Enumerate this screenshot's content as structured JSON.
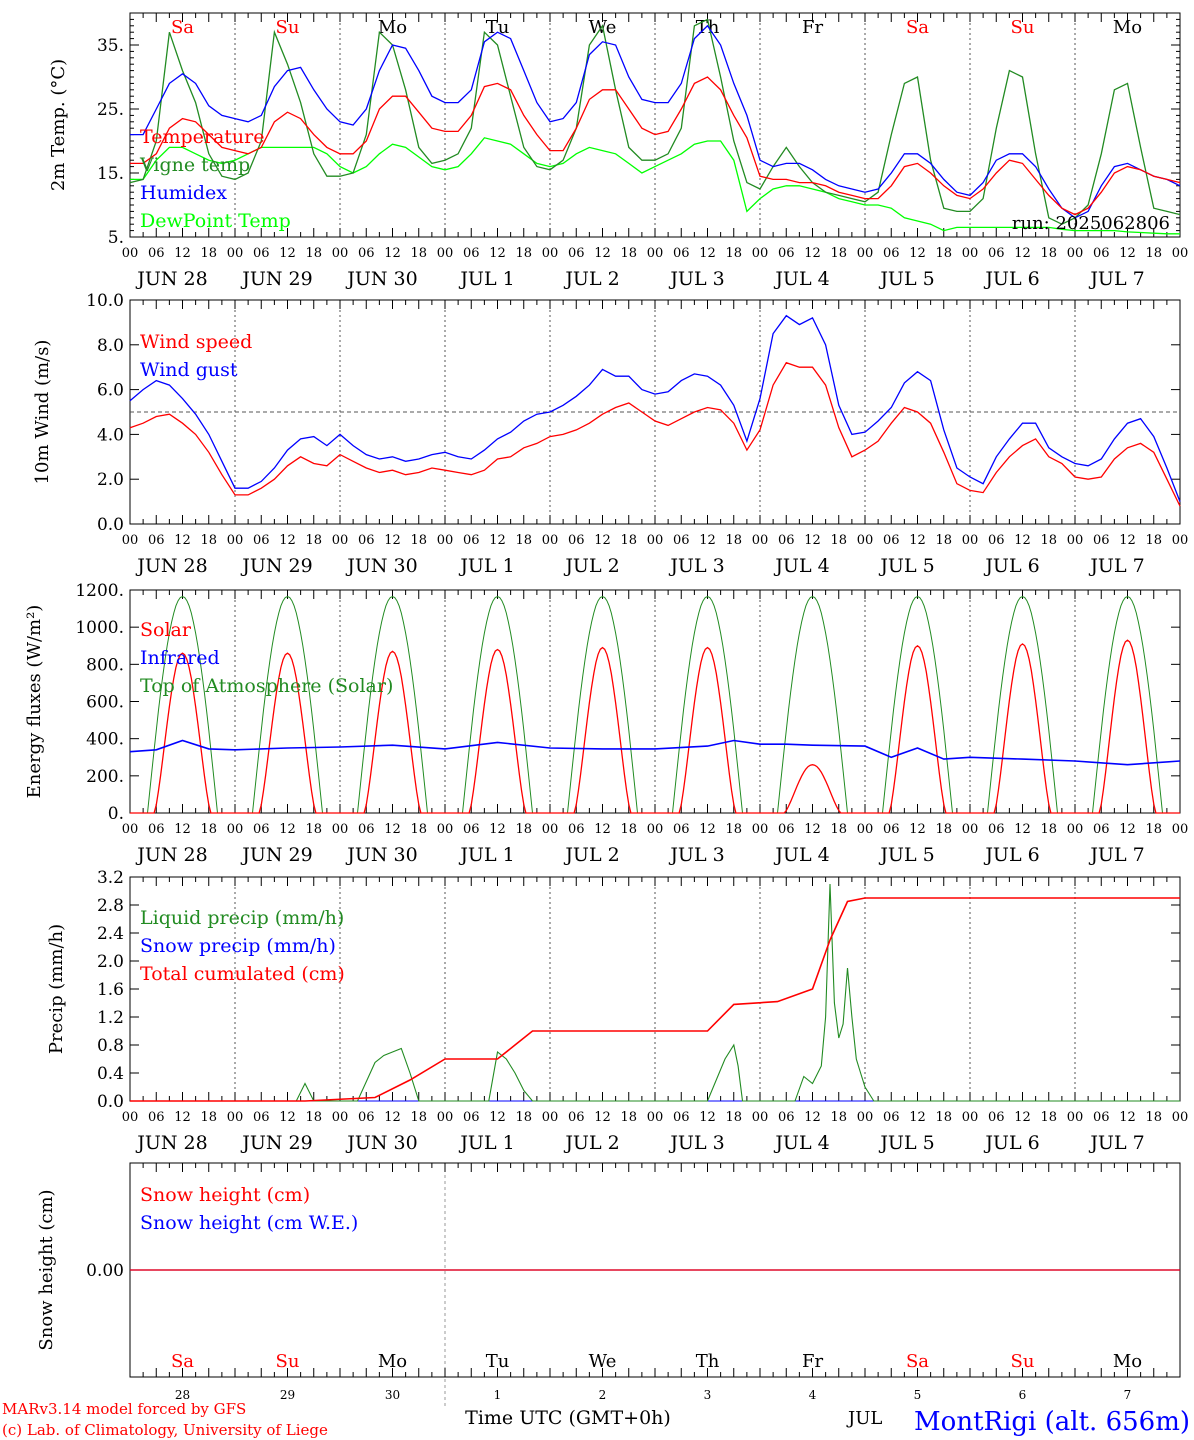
{
  "colors": {
    "red": "#ff0000",
    "green": "#228b22",
    "blue": "#0000ff",
    "light_green": "#00ff00",
    "axis": "#000000",
    "grid": "#555555"
  },
  "days": {
    "weekdays": [
      "Sa",
      "Su",
      "Mo",
      "Tu",
      "We",
      "Th",
      "Fr",
      "Sa",
      "Su",
      "Mo"
    ],
    "weekend": [
      true,
      true,
      false,
      false,
      false,
      false,
      false,
      true,
      true,
      false
    ],
    "dates": [
      "JUN 28",
      "JUN 29",
      "JUN 30",
      "JUL  1",
      "JUL  2",
      "JUL  3",
      "JUL  4",
      "JUL  5",
      "JUL  6",
      "JUL  7"
    ],
    "day_numbers": [
      "28",
      "29",
      "30",
      "1",
      "2",
      "3",
      "4",
      "5",
      "6",
      "7"
    ],
    "hour_ticks": [
      "00",
      "06",
      "12",
      "18"
    ],
    "final_tick": "00"
  },
  "footer": {
    "model": "MARv3.14 model forced by GFS",
    "credit": "(c) Lab. of Climatology, University of Liege",
    "time_axis": "Time UTC (GMT+0h)",
    "month": "JUL",
    "station": "MontRigi (alt. 656m)"
  },
  "chart_data": [
    {
      "type": "line",
      "panel": "temperature",
      "ylabel": "2m Temp. (°C)",
      "ylim": [
        5,
        40
      ],
      "yticks": [
        5,
        15,
        25,
        35
      ],
      "ytick_labels": [
        "5.",
        "15.",
        "25.",
        "35."
      ],
      "run_label": "run: 2025062806",
      "legend_placement": "top-left",
      "x_hours": [
        0,
        3,
        6,
        9,
        12,
        15,
        18,
        21,
        24,
        27,
        30,
        33,
        36,
        39,
        42,
        45,
        48,
        51,
        54,
        57,
        60,
        63,
        66,
        69,
        72,
        75,
        78,
        81,
        84,
        87,
        90,
        93,
        96,
        99,
        102,
        105,
        108,
        111,
        114,
        117,
        120,
        123,
        126,
        129,
        132,
        135,
        138,
        141,
        144,
        147,
        150,
        153,
        156,
        159,
        162,
        165,
        168,
        171,
        174,
        177,
        180,
        183,
        186,
        189,
        192,
        195,
        198,
        201,
        204,
        207,
        210,
        213,
        216,
        219,
        222,
        225,
        228,
        231,
        234,
        237,
        240
      ],
      "series": [
        {
          "name": "Temperature",
          "color": "red",
          "values": [
            16.5,
            16.5,
            18,
            22,
            23.5,
            23,
            21,
            19,
            18.5,
            18,
            19,
            23,
            24.5,
            23.5,
            21,
            19,
            18,
            18,
            20,
            25,
            27,
            27,
            24.5,
            22,
            21.5,
            21.5,
            24,
            28.5,
            29,
            28,
            24,
            21,
            18.5,
            18.5,
            22,
            26.5,
            28,
            28,
            25,
            22,
            21,
            21.5,
            25,
            29,
            30,
            28,
            24,
            20.5,
            14.5,
            14,
            14,
            13.5,
            13.5,
            13,
            12,
            11.5,
            11,
            11,
            13,
            16,
            16.5,
            15,
            13,
            11.5,
            11,
            12.5,
            15,
            17,
            16.5,
            14,
            11.5,
            9.5,
            8.5,
            9.5,
            12,
            15,
            16,
            15.5,
            14.5,
            14,
            13.5
          ]
        },
        {
          "name": "Vigne temp",
          "color": "green",
          "values": [
            13.5,
            14,
            20,
            37,
            31,
            26,
            18,
            14.5,
            14,
            15,
            20,
            37,
            32,
            26,
            18,
            14.5,
            14.5,
            15,
            21,
            37,
            35,
            28,
            19,
            16.5,
            17,
            18,
            22,
            37,
            35,
            27,
            19,
            16,
            15.5,
            17,
            22,
            35,
            38,
            28,
            19,
            17,
            17,
            18,
            22,
            38,
            39,
            30,
            20,
            13.5,
            12.5,
            16,
            19,
            16,
            13.5,
            12,
            11.5,
            11,
            10.5,
            12,
            21,
            29,
            30,
            17,
            9.5,
            9,
            9,
            11,
            22,
            31,
            30,
            18,
            8,
            7,
            8,
            10,
            18,
            28,
            29,
            19,
            9.5,
            9,
            8.5
          ]
        },
        {
          "name": "Humidex",
          "color": "blue",
          "values": [
            21,
            21,
            25,
            29,
            30.5,
            29,
            25.5,
            24,
            23.5,
            23,
            24,
            28.5,
            31,
            31.5,
            28,
            25,
            23,
            22.5,
            25,
            31,
            35,
            34.5,
            31,
            27,
            26,
            26,
            28,
            35.5,
            37,
            36,
            31,
            26,
            23,
            23.5,
            26,
            33.5,
            35.5,
            35,
            30,
            26.5,
            26,
            26,
            29,
            36,
            38,
            35,
            29,
            24,
            17,
            16,
            16.5,
            16.5,
            15.5,
            14,
            13,
            12.5,
            12,
            12.5,
            15,
            18,
            18,
            16.5,
            14,
            12,
            11.5,
            13.5,
            17,
            18,
            18,
            16,
            12.5,
            9.5,
            8,
            9,
            13,
            16,
            16.5,
            15.5,
            14.5,
            14,
            13
          ]
        },
        {
          "name": "DewPoint Temp",
          "color": "light_green",
          "values": [
            14,
            14,
            17,
            19,
            19,
            18,
            17,
            16.5,
            17,
            18,
            19,
            19,
            19,
            19,
            19,
            18,
            16,
            15,
            16,
            18,
            19.5,
            19,
            17.5,
            16,
            15.5,
            16,
            18,
            20.5,
            20,
            19.5,
            18,
            16.5,
            16,
            16.5,
            18,
            19,
            18.5,
            18,
            16.5,
            15,
            16,
            17,
            18,
            19.5,
            20,
            20,
            17,
            9,
            11,
            12.5,
            13,
            13,
            12.5,
            12,
            11,
            10.5,
            10,
            10,
            9.5,
            8,
            7.5,
            7,
            6,
            6.5,
            6.5,
            6.5,
            6.5,
            6.5,
            6.5,
            6.5,
            6.5,
            6.2,
            6,
            6,
            6,
            6,
            5.8,
            5.7,
            5.6,
            5.5,
            5.5
          ]
        }
      ]
    },
    {
      "type": "line",
      "panel": "wind",
      "ylabel": "10m Wind (m/s)",
      "ylim": [
        0,
        10
      ],
      "yticks": [
        0,
        2,
        4,
        6,
        8,
        10
      ],
      "ytick_labels": [
        "0.0",
        "2.0",
        "4.0",
        "6.0",
        "8.0",
        "10.0"
      ],
      "reference_line": 5,
      "legend_placement": "top-left",
      "x_hours": [
        0,
        3,
        6,
        9,
        12,
        15,
        18,
        21,
        24,
        27,
        30,
        33,
        36,
        39,
        42,
        45,
        48,
        51,
        54,
        57,
        60,
        63,
        66,
        69,
        72,
        75,
        78,
        81,
        84,
        87,
        90,
        93,
        96,
        99,
        102,
        105,
        108,
        111,
        114,
        117,
        120,
        123,
        126,
        129,
        132,
        135,
        138,
        141,
        144,
        147,
        150,
        153,
        156,
        159,
        162,
        165,
        168,
        171,
        174,
        177,
        180,
        183,
        186,
        189,
        192,
        195,
        198,
        201,
        204,
        207,
        210,
        213,
        216,
        219,
        222,
        225,
        228,
        231,
        234,
        237,
        240
      ],
      "series": [
        {
          "name": "Wind speed",
          "color": "red",
          "values": [
            4.3,
            4.5,
            4.8,
            4.9,
            4.5,
            4.0,
            3.2,
            2.2,
            1.3,
            1.3,
            1.6,
            2.0,
            2.6,
            3.0,
            2.7,
            2.6,
            3.1,
            2.8,
            2.5,
            2.3,
            2.4,
            2.2,
            2.3,
            2.5,
            2.4,
            2.3,
            2.2,
            2.4,
            2.9,
            3.0,
            3.4,
            3.6,
            3.9,
            4.0,
            4.2,
            4.5,
            4.9,
            5.2,
            5.4,
            5.0,
            4.6,
            4.4,
            4.7,
            5.0,
            5.2,
            5.1,
            4.5,
            3.3,
            4.2,
            6.2,
            7.2,
            7.0,
            7.0,
            6.2,
            4.3,
            3.0,
            3.3,
            3.7,
            4.5,
            5.2,
            5.0,
            4.5,
            3.2,
            1.8,
            1.5,
            1.4,
            2.3,
            3.0,
            3.5,
            3.8,
            3.0,
            2.7,
            2.1,
            2.0,
            2.1,
            2.9,
            3.4,
            3.6,
            3.2,
            2.0,
            0.8
          ]
        },
        {
          "name": "Wind gust",
          "color": "blue",
          "values": [
            5.5,
            6.0,
            6.4,
            6.2,
            5.6,
            4.9,
            4.0,
            2.8,
            1.6,
            1.6,
            1.9,
            2.5,
            3.3,
            3.8,
            3.9,
            3.5,
            4.0,
            3.5,
            3.1,
            2.9,
            3.0,
            2.8,
            2.9,
            3.1,
            3.2,
            3.0,
            2.9,
            3.3,
            3.8,
            4.1,
            4.6,
            4.9,
            5.0,
            5.3,
            5.7,
            6.2,
            6.9,
            6.6,
            6.6,
            6.0,
            5.8,
            5.9,
            6.4,
            6.7,
            6.6,
            6.2,
            5.3,
            3.7,
            5.6,
            8.5,
            9.3,
            8.9,
            9.2,
            8.0,
            5.3,
            4.0,
            4.1,
            4.6,
            5.2,
            6.3,
            6.8,
            6.4,
            4.2,
            2.5,
            2.1,
            1.8,
            3.0,
            3.8,
            4.5,
            4.5,
            3.4,
            3.0,
            2.7,
            2.6,
            2.9,
            3.8,
            4.5,
            4.7,
            3.9,
            2.5,
            1.0
          ]
        }
      ]
    },
    {
      "type": "line",
      "panel": "energy",
      "ylabel": "Energy fluxes (W/m²)",
      "ylim": [
        0,
        1200
      ],
      "yticks": [
        0,
        200,
        400,
        600,
        800,
        1000,
        1200
      ],
      "ytick_labels": [
        "0.",
        "200.",
        "400.",
        "600.",
        "800.",
        "1000.",
        "1200."
      ],
      "legend_placement": "top-left",
      "daily_solar_peaks": [
        860,
        860,
        870,
        880,
        890,
        890,
        260,
        900,
        910,
        930
      ],
      "toa_peak": 1165,
      "sunrise_hour": 4,
      "sunset_hour": 20,
      "infrared": {
        "x_hours": [
          0,
          6,
          12,
          18,
          24,
          36,
          48,
          60,
          72,
          84,
          96,
          108,
          120,
          132,
          138,
          144,
          150,
          156,
          168,
          174,
          180,
          186,
          192,
          204,
          216,
          228,
          240
        ],
        "values": [
          330,
          340,
          390,
          345,
          340,
          350,
          355,
          365,
          345,
          380,
          350,
          345,
          345,
          360,
          390,
          370,
          370,
          365,
          360,
          300,
          350,
          290,
          300,
          290,
          280,
          260,
          280
        ]
      },
      "series": [
        {
          "name": "Solar",
          "color": "red"
        },
        {
          "name": "Infrared",
          "color": "blue"
        },
        {
          "name": "Top of Atmosphere (Solar)",
          "color": "green"
        }
      ]
    },
    {
      "type": "line",
      "panel": "precip",
      "ylabel": "Precip (mm/h)",
      "ylim": [
        0,
        3.2
      ],
      "yticks": [
        0,
        0.4,
        0.8,
        1.2,
        1.6,
        2.0,
        2.4,
        2.8,
        3.2
      ],
      "ytick_labels": [
        "0.0",
        "0.4",
        "0.8",
        "1.2",
        "1.6",
        "2.0",
        "2.4",
        "2.8",
        "3.2"
      ],
      "legend_placement": "top-left",
      "series": [
        {
          "name": "Liquid precip (mm/h)",
          "color": "green",
          "x_hours": [
            0,
            38,
            40,
            42,
            44,
            52,
            56,
            58,
            60,
            62,
            64,
            66,
            70,
            82,
            84,
            86,
            88,
            90,
            92,
            108,
            132,
            136,
            138,
            139,
            140,
            144,
            152,
            154,
            156,
            158,
            159,
            160,
            161,
            162,
            163,
            164,
            165,
            166,
            167,
            168,
            169,
            170,
            174,
            240
          ],
          "values": [
            0,
            0,
            0.25,
            0,
            0,
            0,
            0.55,
            0.65,
            0.7,
            0.75,
            0.4,
            0,
            0,
            0,
            0.7,
            0.6,
            0.4,
            0.15,
            0,
            0,
            0,
            0.6,
            0.8,
            0.5,
            0,
            0,
            0,
            0.35,
            0.25,
            0.5,
            1.2,
            3.1,
            1.4,
            0.9,
            1.1,
            1.9,
            1.2,
            0.6,
            0.4,
            0.2,
            0.1,
            0,
            0,
            0
          ]
        },
        {
          "name": "Snow precip (mm/h)",
          "color": "blue",
          "x_hours": [
            0,
            240
          ],
          "values": [
            0,
            0
          ]
        },
        {
          "name": "Total cumulated (cm)",
          "color": "red",
          "x_hours": [
            0,
            40,
            56,
            64,
            72,
            84,
            88,
            92,
            108,
            132,
            138,
            148,
            156,
            160,
            164,
            168,
            172,
            240
          ],
          "values": [
            0,
            0,
            0.05,
            0.3,
            0.6,
            0.6,
            0.8,
            1.0,
            1.0,
            1.0,
            1.38,
            1.42,
            1.6,
            2.3,
            2.85,
            2.9,
            2.9,
            2.9
          ]
        }
      ]
    },
    {
      "type": "line",
      "panel": "snow",
      "ylabel": "Snow height (cm)",
      "yticks": [
        0
      ],
      "ytick_labels": [
        "0.00"
      ],
      "legend_placement": "top-left",
      "series": [
        {
          "name": "Snow height (cm)",
          "color": "red",
          "x_hours": [
            0,
            240
          ],
          "values": [
            0,
            0
          ]
        },
        {
          "name": "Snow height (cm W.E.)",
          "color": "blue",
          "x_hours": [
            0,
            240
          ],
          "values": [
            0,
            0
          ]
        }
      ]
    }
  ]
}
